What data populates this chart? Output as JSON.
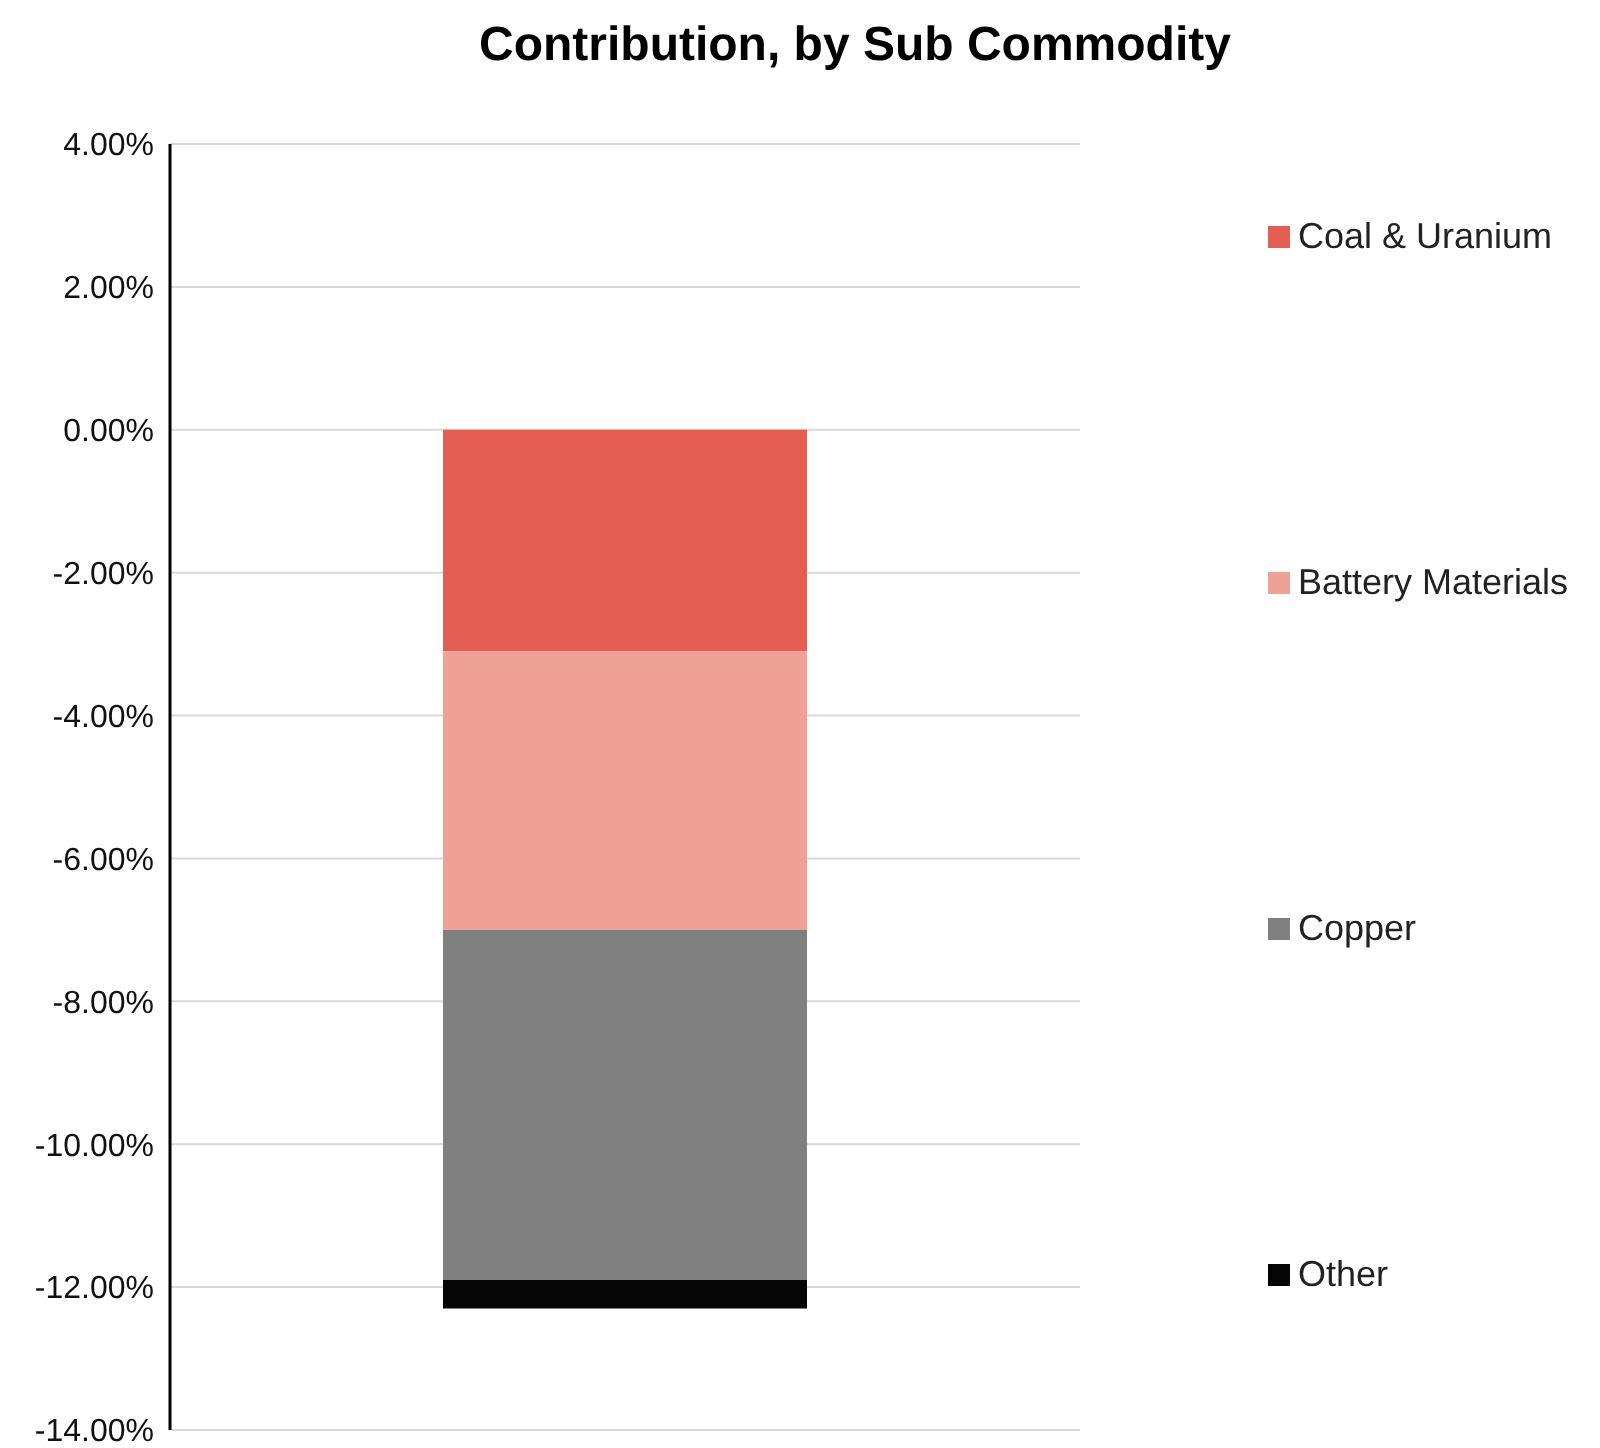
{
  "chart_data": {
    "type": "bar",
    "title": "Contribution, by Sub Commodity",
    "categories": [
      null
    ],
    "stacked": true,
    "series": [
      {
        "name": "Coal & Uranium",
        "color": "#e35d50",
        "values": [
          -3.1
        ]
      },
      {
        "name": "Battery Materials",
        "color": "#f0a197",
        "values": [
          -3.9
        ]
      },
      {
        "name": "Copper",
        "color": "#808080",
        "values": [
          -4.9
        ]
      },
      {
        "name": "Other",
        "color": "#050505",
        "values": [
          -0.4
        ]
      }
    ],
    "ylim": [
      -14,
      4
    ],
    "yticks": [
      {
        "value": 4,
        "label": "4.00%"
      },
      {
        "value": 2,
        "label": "2.00%"
      },
      {
        "value": 0,
        "label": "0.00%"
      },
      {
        "value": -2,
        "label": "-2.00%"
      },
      {
        "value": -4,
        "label": "-4.00%"
      },
      {
        "value": -6,
        "label": "-6.00%"
      },
      {
        "value": -8,
        "label": "-8.00%"
      },
      {
        "value": -10,
        "label": "-10.00%"
      },
      {
        "value": -12,
        "label": "-12.00%"
      },
      {
        "value": -14,
        "label": "-14.00%"
      }
    ],
    "grid": "y",
    "legend": "right"
  }
}
